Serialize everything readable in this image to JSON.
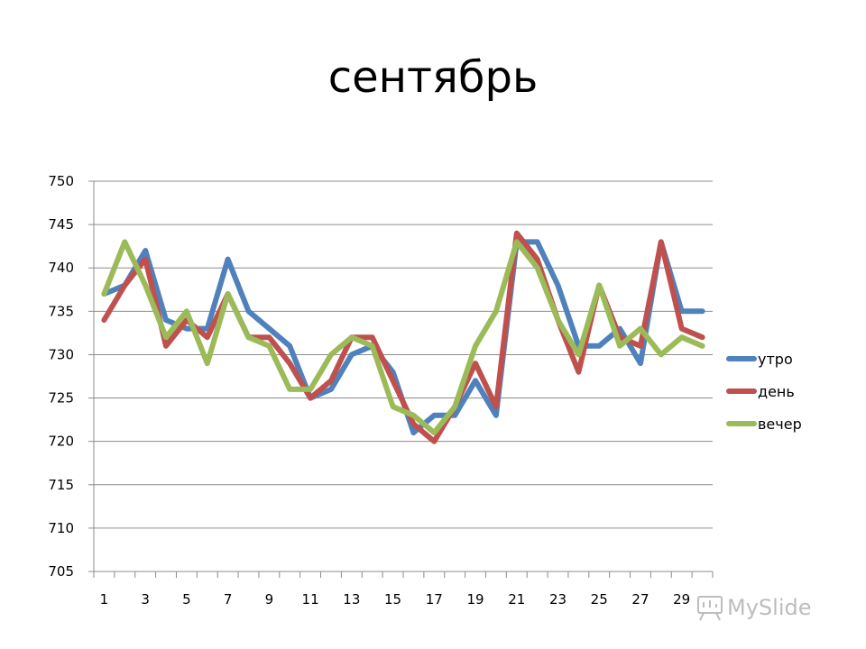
{
  "chart_data": {
    "type": "line",
    "title": "сентябрь",
    "xlabel": "",
    "ylabel": "",
    "x": [
      1,
      2,
      3,
      4,
      5,
      6,
      7,
      8,
      9,
      10,
      11,
      12,
      13,
      14,
      15,
      16,
      17,
      18,
      19,
      20,
      21,
      22,
      23,
      24,
      25,
      26,
      27,
      28,
      29,
      30
    ],
    "x_tick_labels": [
      "1",
      "3",
      "5",
      "7",
      "9",
      "11",
      "13",
      "15",
      "17",
      "19",
      "21",
      "23",
      "25",
      "27",
      "29"
    ],
    "ylim": [
      705,
      750
    ],
    "y_ticks": [
      705,
      710,
      715,
      720,
      725,
      730,
      735,
      740,
      745,
      750
    ],
    "grid": true,
    "legend_position": "right",
    "series": [
      {
        "name": "утро",
        "color": "#4F81BD",
        "values": [
          737,
          738,
          742,
          734,
          733,
          733,
          741,
          735,
          733,
          731,
          725,
          726,
          730,
          731,
          728,
          721,
          723,
          723,
          727,
          723,
          743,
          743,
          738,
          731,
          731,
          733,
          729,
          743,
          735,
          735
        ]
      },
      {
        "name": "день",
        "color": "#C0504D",
        "values": [
          734,
          738,
          741,
          731,
          734,
          732,
          737,
          732,
          732,
          729,
          725,
          727,
          732,
          732,
          727,
          722,
          720,
          724,
          729,
          724,
          744,
          741,
          734,
          728,
          738,
          732,
          731,
          743,
          733,
          732
        ]
      },
      {
        "name": "вечер",
        "color": "#9BBB59",
        "values": [
          737,
          743,
          738,
          732,
          735,
          729,
          737,
          732,
          731,
          726,
          726,
          730,
          732,
          731,
          724,
          723,
          721,
          724,
          731,
          735,
          743,
          740,
          734,
          730,
          738,
          731,
          733,
          730,
          732,
          731
        ]
      }
    ]
  },
  "watermark": {
    "text": "MySlide",
    "icon": "presentation-board-icon"
  }
}
